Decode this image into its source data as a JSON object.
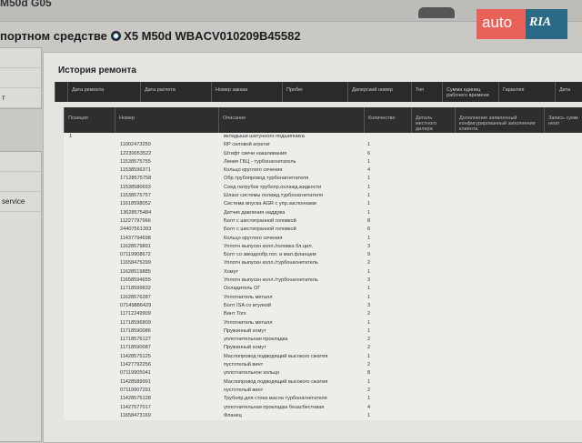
{
  "header": {
    "model": "M50d G05",
    "title_prefix": "портном средстве",
    "title_vehicle": "X5 M50d WBACV010209B45582"
  },
  "logo": {
    "left": "auto",
    "right": "RIA",
    "colors": {
      "left": "#e8625a",
      "right": "#2b6a86"
    }
  },
  "sidebar": {
    "items": [
      "",
      "",
      "т",
      "",
      "",
      "service"
    ]
  },
  "panel": {
    "title": "История ремонта",
    "columns": [
      "Дата ремонта",
      "Дата расчета",
      "Номер заказа",
      "Пробег",
      "Дилерский номер",
      "Тип",
      "Сумма единиц рабочего времени",
      "Гарантия",
      "Дета"
    ],
    "detail_columns": [
      "Позиция",
      "Номер",
      "Описание",
      "Количество",
      "Деталь местного дилера",
      "Дополнение заявленный конфигурированный заполнение клиента",
      "Запись сумм неоп"
    ],
    "rows": [
      {
        "pos": "1",
        "num": "",
        "desc": "вкладыши шатунного подшипника",
        "qty": ""
      },
      {
        "pos": "",
        "num": "11002473250",
        "desc": "RP силовой агрегат",
        "qty": "1"
      },
      {
        "pos": "",
        "num": "12230053522",
        "desc": "Штифт свечи накаливания",
        "qty": "6"
      },
      {
        "pos": "",
        "num": "11538575755",
        "desc": "Линия ГБЦ - турбонагнетатель",
        "qty": "1"
      },
      {
        "pos": "",
        "num": "11538596371",
        "desc": "Кольцо круглого сечения",
        "qty": "4"
      },
      {
        "pos": "",
        "num": "17128575758",
        "desc": "Обр.трубопровод турбонагнетателя",
        "qty": "1"
      },
      {
        "pos": "",
        "num": "11538580693",
        "desc": "Соед патрубок трубопр.охлажд.жидкости",
        "qty": "1"
      },
      {
        "pos": "",
        "num": "11538575757",
        "desc": "Шланг системы охлажд.турбонагнетателя",
        "qty": "1"
      },
      {
        "pos": "",
        "num": "11618598052",
        "desc": "Система впуска AGR с упр.заслонками",
        "qty": "1"
      },
      {
        "pos": "",
        "num": "13628575484",
        "desc": "Датчик давления наддува",
        "qty": "1"
      },
      {
        "pos": "",
        "num": "11227797966",
        "desc": "Болт с шестигранной головкой",
        "qty": "8"
      },
      {
        "pos": "",
        "num": "24407561393",
        "desc": "Болт с шестигранной головкой",
        "qty": "6"
      },
      {
        "pos": "",
        "num": "11437794698",
        "desc": "Кольцо круглого сечения",
        "qty": "1"
      },
      {
        "pos": "",
        "num": "11628579891",
        "desc": "Уплотн выпускн колл./головка бл.цил.",
        "qty": "3"
      },
      {
        "pos": "",
        "num": "07119908672",
        "desc": "Болт со звездообр.гол. и мал.фланцем",
        "qty": "9"
      },
      {
        "pos": "",
        "num": "11658475299",
        "desc": "Уплотн выпускн колл./турбонагнетатель",
        "qty": "2"
      },
      {
        "pos": "",
        "num": "11628519885",
        "desc": "Хомут",
        "qty": "1"
      },
      {
        "pos": "",
        "num": "11658594655",
        "desc": "Уплотн выпускн колл./турбонагнетатель",
        "qty": "3"
      },
      {
        "pos": "",
        "num": "11718599832",
        "desc": "Охладитель ОГ",
        "qty": "1"
      },
      {
        "pos": "",
        "num": "11628576287",
        "desc": "Уплотнитель металл",
        "qty": "1"
      },
      {
        "pos": "",
        "num": "07149886429",
        "desc": "Болт ISA со втулкой",
        "qty": "3"
      },
      {
        "pos": "",
        "num": "11712249909",
        "desc": "Винт Torx",
        "qty": "2"
      },
      {
        "pos": "",
        "num": "11718596809",
        "desc": "Уплотнитель металл",
        "qty": "1"
      },
      {
        "pos": "",
        "num": "11718590086",
        "desc": "Пружинный хомут",
        "qty": "1"
      },
      {
        "pos": "",
        "num": "11718576127",
        "desc": "уплотнительная прокладка",
        "qty": "2"
      },
      {
        "pos": "",
        "num": "11718590087",
        "desc": "Пружинный хомут",
        "qty": "2"
      },
      {
        "pos": "",
        "num": "11428575125",
        "desc": "Маслопровод подводящий высокого сжатия",
        "qty": "1"
      },
      {
        "pos": "",
        "num": "11427792256",
        "desc": "пустотелый винт",
        "qty": "2"
      },
      {
        "pos": "",
        "num": "07119905041",
        "desc": "уплотнительное кольцо",
        "qty": "8"
      },
      {
        "pos": "",
        "num": "11428589991",
        "desc": "Маслопровод подводящий высокого сжатия",
        "qty": "1"
      },
      {
        "pos": "",
        "num": "07119907291",
        "desc": "пустотелый винт",
        "qty": "2"
      },
      {
        "pos": "",
        "num": "11428575128",
        "desc": "Трубопр.для стока масла турбонагнетателя",
        "qty": "1"
      },
      {
        "pos": "",
        "num": "11427577017",
        "desc": "уплотнительная прокладка безасбестовая",
        "qty": "4"
      },
      {
        "pos": "",
        "num": "11658473169",
        "desc": "Фланец",
        "qty": "1"
      }
    ]
  }
}
